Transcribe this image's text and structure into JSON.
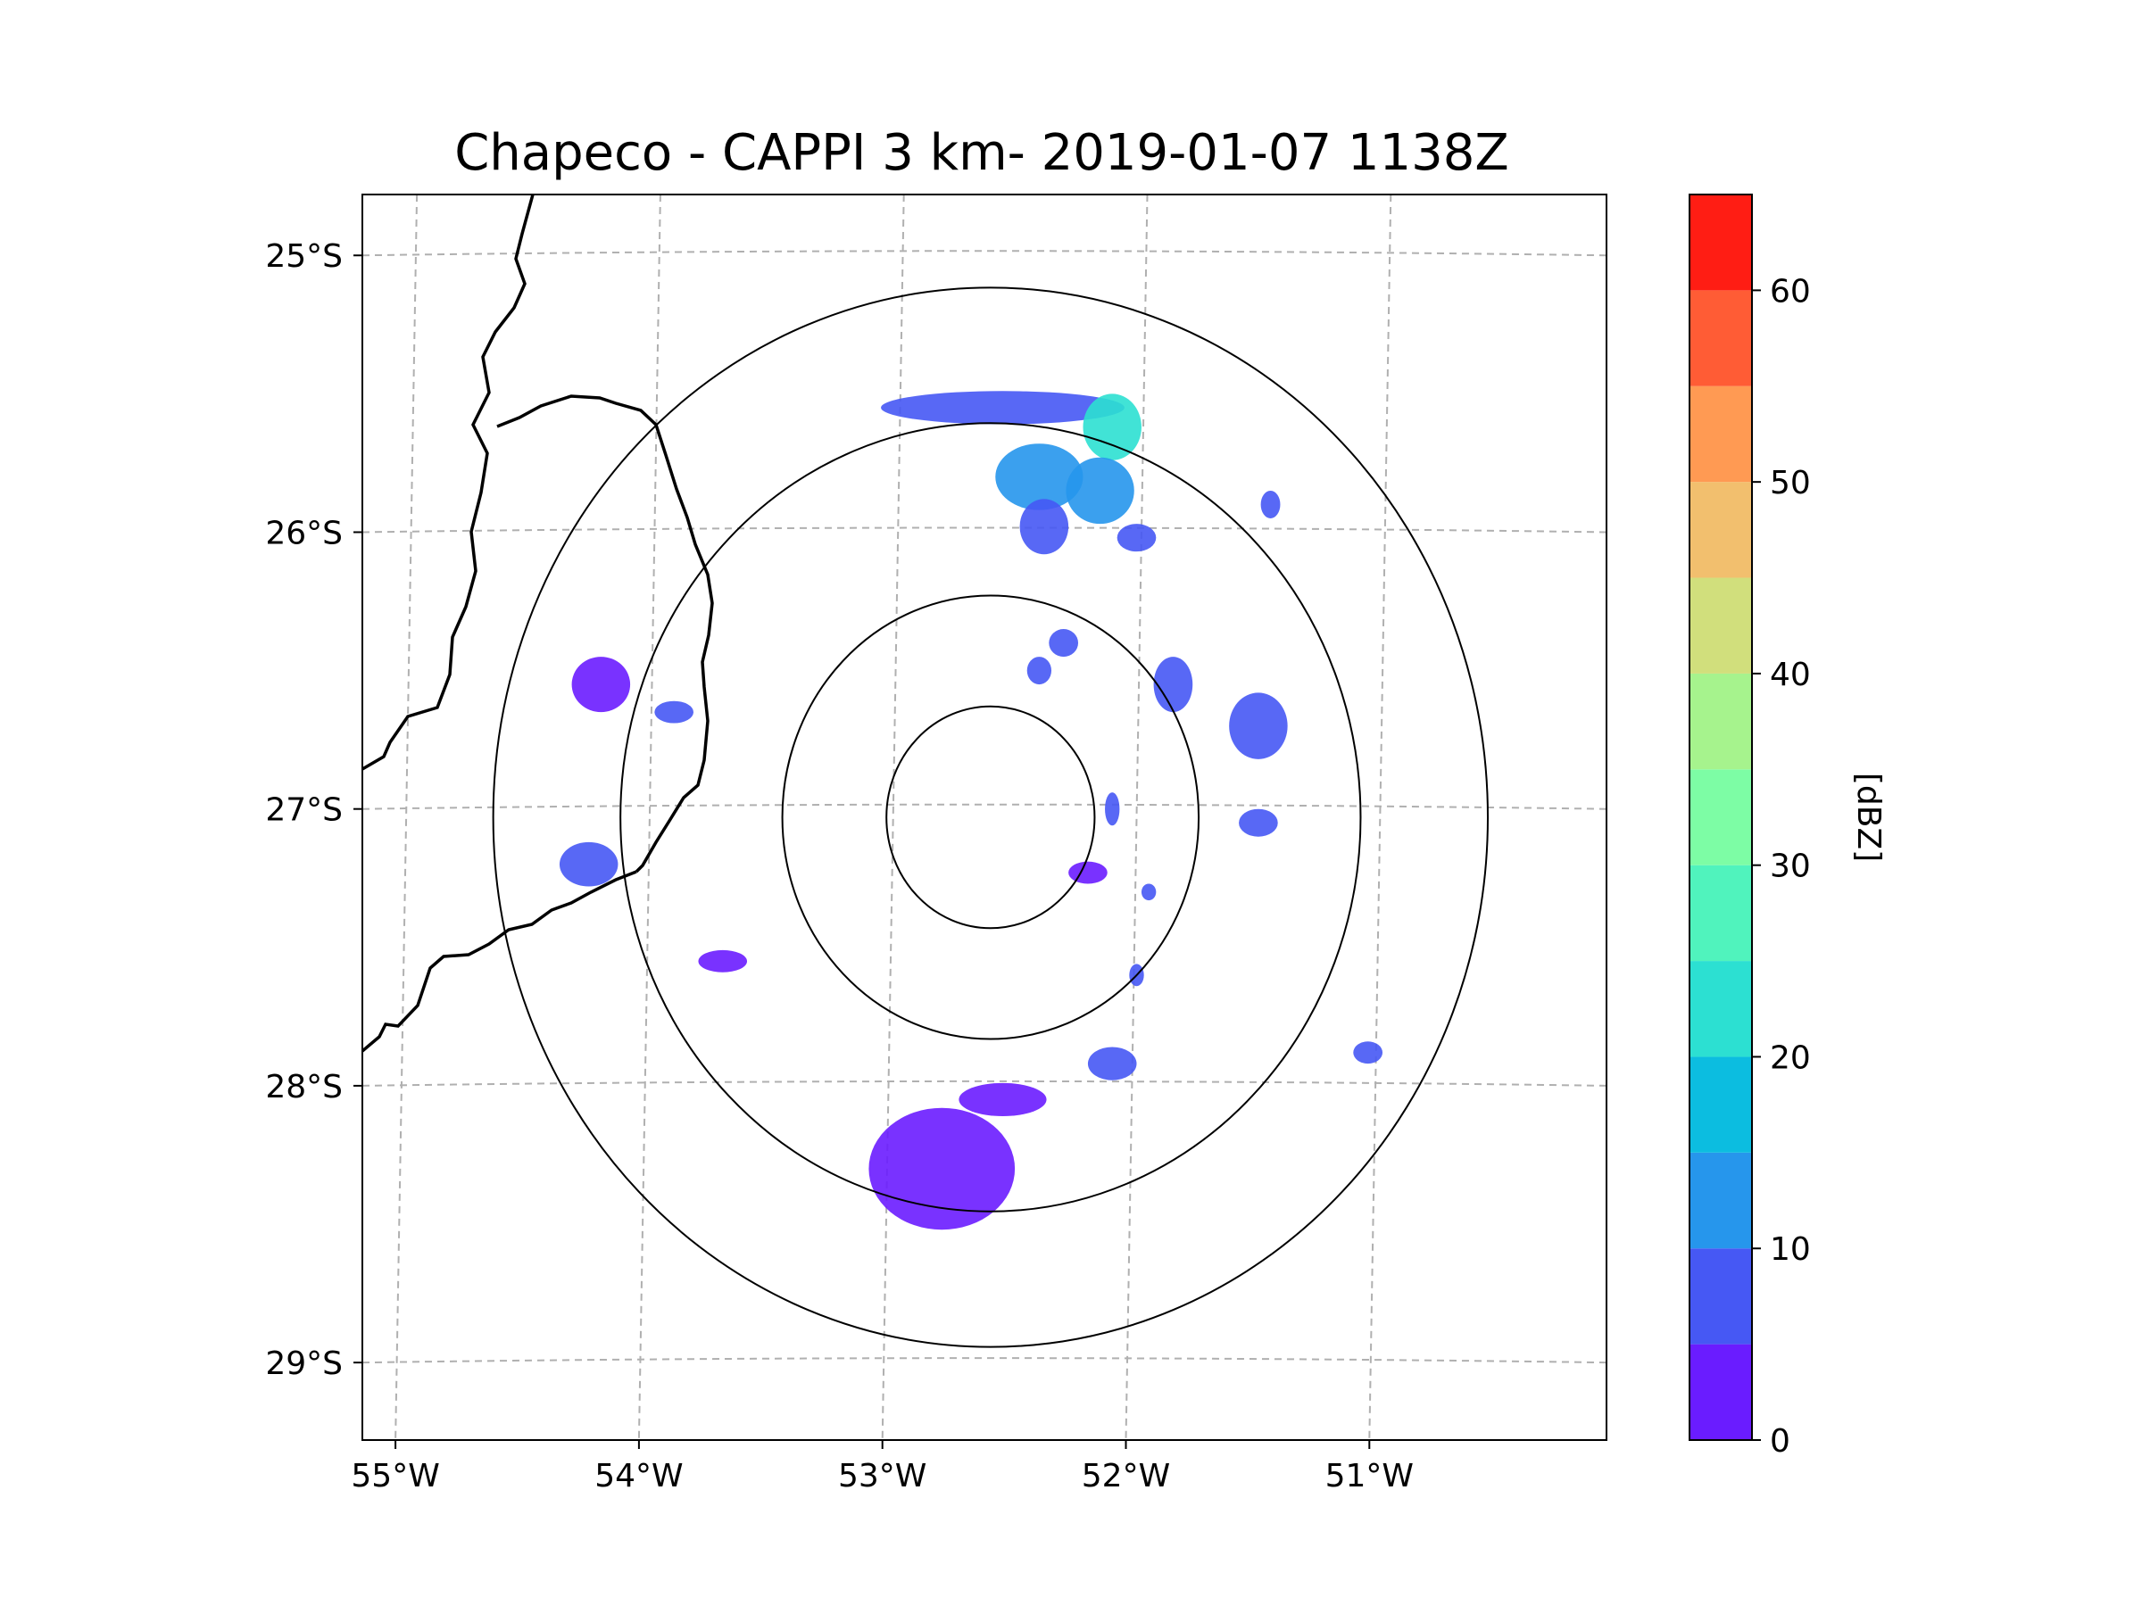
{
  "title": "Chapeco - CAPPI 3 km- 2019-01-07 1138Z",
  "chart_data": {
    "type": "heatmap",
    "projection": "radar PPI map",
    "lon_range": [
      -55.18,
      -50.07
    ],
    "lat_range": [
      -29.28,
      -24.78
    ],
    "lon_ticks": [
      {
        "value": -55,
        "label": "55°W"
      },
      {
        "value": -54,
        "label": "54°W"
      },
      {
        "value": -53,
        "label": "53°W"
      },
      {
        "value": -52,
        "label": "52°W"
      },
      {
        "value": -51,
        "label": "51°W"
      }
    ],
    "lat_ticks": [
      {
        "value": -25,
        "label": "25°S"
      },
      {
        "value": -26,
        "label": "26°S"
      },
      {
        "value": -27,
        "label": "27°S"
      },
      {
        "value": -28,
        "label": "28°S"
      },
      {
        "value": -29,
        "label": "29°S"
      }
    ],
    "radar_center": {
      "lon": -52.6,
      "lat": -27.03
    },
    "range_rings_deg": [
      0.45,
      0.9,
      1.6,
      2.15
    ],
    "colorbar": {
      "label": "[dBZ]",
      "min": 0,
      "max": 65,
      "ticks": [
        {
          "value": 0,
          "label": "0"
        },
        {
          "value": 10,
          "label": "10"
        },
        {
          "value": 20,
          "label": "20"
        },
        {
          "value": 30,
          "label": "30"
        },
        {
          "value": 40,
          "label": "40"
        },
        {
          "value": 50,
          "label": "50"
        },
        {
          "value": 60,
          "label": "60"
        }
      ],
      "levels": [
        0,
        5,
        10,
        15,
        20,
        25,
        30,
        35,
        40,
        45,
        50,
        55,
        60,
        65
      ],
      "colors": [
        "#6a1cff",
        "#4658f4",
        "#2696ec",
        "#0cbde0",
        "#2ce0d2",
        "#50f3bd",
        "#7dfda5",
        "#a6f38d",
        "#d1df7c",
        "#f2bf6e",
        "#ff9a53",
        "#ff5c35",
        "#ff1d14"
      ]
    },
    "echoes": [
      {
        "lon": -52.55,
        "lat": -25.55,
        "rx": 0.5,
        "ry": 0.06,
        "dbz": 8
      },
      {
        "lon": -52.1,
        "lat": -25.62,
        "rx": 0.12,
        "ry": 0.12,
        "dbz": 24
      },
      {
        "lon": -52.15,
        "lat": -25.85,
        "rx": 0.14,
        "ry": 0.12,
        "dbz": 10
      },
      {
        "lon": -52.4,
        "lat": -25.8,
        "rx": 0.18,
        "ry": 0.12,
        "dbz": 10
      },
      {
        "lon": -52.38,
        "lat": -25.98,
        "rx": 0.1,
        "ry": 0.1,
        "dbz": 8
      },
      {
        "lon": -52.0,
        "lat": -26.02,
        "rx": 0.08,
        "ry": 0.05,
        "dbz": 6
      },
      {
        "lon": -52.2,
        "lat": -27.23,
        "rx": 0.08,
        "ry": 0.04,
        "dbz": 4
      },
      {
        "lon": -52.8,
        "lat": -28.3,
        "rx": 0.3,
        "ry": 0.22,
        "dbz": 3
      },
      {
        "lon": -52.55,
        "lat": -28.05,
        "rx": 0.18,
        "ry": 0.06,
        "dbz": 3
      },
      {
        "lon": -52.1,
        "lat": -27.92,
        "rx": 0.1,
        "ry": 0.06,
        "dbz": 8
      },
      {
        "lon": -54.25,
        "lat": -27.2,
        "rx": 0.12,
        "ry": 0.08,
        "dbz": 6
      },
      {
        "lon": -54.2,
        "lat": -26.55,
        "rx": 0.12,
        "ry": 0.1,
        "dbz": 4
      },
      {
        "lon": -53.9,
        "lat": -26.65,
        "rx": 0.08,
        "ry": 0.04,
        "dbz": 6
      },
      {
        "lon": -53.7,
        "lat": -27.55,
        "rx": 0.1,
        "ry": 0.04,
        "dbz": 4
      },
      {
        "lon": -51.85,
        "lat": -26.55,
        "rx": 0.08,
        "ry": 0.1,
        "dbz": 6
      },
      {
        "lon": -51.5,
        "lat": -26.7,
        "rx": 0.12,
        "ry": 0.12,
        "dbz": 6
      },
      {
        "lon": -51.5,
        "lat": -27.05,
        "rx": 0.08,
        "ry": 0.05,
        "dbz": 6
      },
      {
        "lon": -52.1,
        "lat": -27.0,
        "rx": 0.03,
        "ry": 0.06,
        "dbz": 6
      },
      {
        "lon": -52.3,
        "lat": -26.4,
        "rx": 0.06,
        "ry": 0.05,
        "dbz": 6
      },
      {
        "lon": -52.4,
        "lat": -26.5,
        "rx": 0.05,
        "ry": 0.05,
        "dbz": 5
      },
      {
        "lon": -51.05,
        "lat": -27.88,
        "rx": 0.06,
        "ry": 0.04,
        "dbz": 6
      },
      {
        "lon": -51.45,
        "lat": -25.9,
        "rx": 0.04,
        "ry": 0.05,
        "dbz": 5
      },
      {
        "lon": -52.0,
        "lat": -27.6,
        "rx": 0.03,
        "ry": 0.04,
        "dbz": 5
      },
      {
        "lon": -51.95,
        "lat": -27.3,
        "rx": 0.03,
        "ry": 0.03,
        "dbz": 5
      }
    ]
  }
}
